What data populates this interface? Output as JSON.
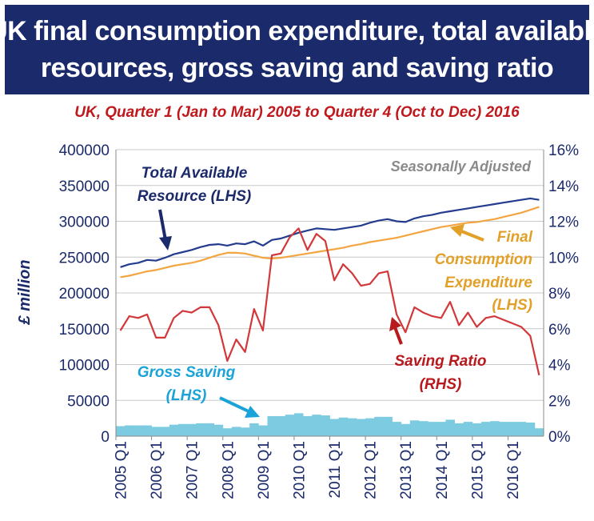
{
  "header": {
    "title_line1": "UK final consumption expenditure, total available",
    "title_line2": "resources, gross saving and saving ratio",
    "subtitle": "UK, Quarter 1 (Jan to Mar) 2005 to Quarter 4 (Oct to Dec) 2016"
  },
  "chart_data": {
    "type": "line",
    "title": "UK final consumption expenditure, total available resources, gross saving and saving ratio",
    "subtitle": "UK, Quarter 1 (Jan to Mar) 2005 to Quarter 4 (Oct to Dec) 2016",
    "ylabel": "£ million",
    "ylim": [
      0,
      400000
    ],
    "y2lim": [
      0,
      16
    ],
    "y_ticks": [
      "0",
      "50000",
      "100000",
      "150000",
      "200000",
      "250000",
      "300000",
      "350000",
      "400000"
    ],
    "y2_ticks": [
      "0%",
      "2%",
      "4%",
      "6%",
      "8%",
      "10%",
      "12%",
      "14%",
      "16%"
    ],
    "x_tick_labels": [
      "2005 Q1",
      "2006 Q1",
      "2007 Q1",
      "2008 Q1",
      "2009 Q1",
      "2010 Q1",
      "2011 Q1",
      "2012 Q1",
      "2013 Q1",
      "2014 Q1",
      "2015 Q1",
      "2016 Q1"
    ],
    "grid": "horizontal",
    "categories": [
      "2005 Q1",
      "2005 Q2",
      "2005 Q3",
      "2005 Q4",
      "2006 Q1",
      "2006 Q2",
      "2006 Q3",
      "2006 Q4",
      "2007 Q1",
      "2007 Q2",
      "2007 Q3",
      "2007 Q4",
      "2008 Q1",
      "2008 Q2",
      "2008 Q3",
      "2008 Q4",
      "2009 Q1",
      "2009 Q2",
      "2009 Q3",
      "2009 Q4",
      "2010 Q1",
      "2010 Q2",
      "2010 Q3",
      "2010 Q4",
      "2011 Q1",
      "2011 Q2",
      "2011 Q3",
      "2011 Q4",
      "2012 Q1",
      "2012 Q2",
      "2012 Q3",
      "2012 Q4",
      "2013 Q1",
      "2013 Q2",
      "2013 Q3",
      "2013 Q4",
      "2014 Q1",
      "2014 Q2",
      "2014 Q3",
      "2014 Q4",
      "2015 Q1",
      "2015 Q2",
      "2015 Q3",
      "2015 Q4",
      "2016 Q1",
      "2016 Q2",
      "2016 Q3",
      "2016 Q4"
    ],
    "annotations": {
      "seasonal": "Seasonally Adjusted",
      "tar_line1": "Total Available",
      "tar_line2": "Resource (LHS)",
      "fce_line1": "Final",
      "fce_line2": "Consumption",
      "fce_line3": "Expenditure",
      "fce_line4": "(LHS)",
      "sr_line1": "Saving Ratio",
      "sr_line2": "(RHS)",
      "gs_line1": "Gross Saving",
      "gs_line2": "(LHS)"
    },
    "series": [
      {
        "name": "Total Available Resource (LHS)",
        "kind": "line",
        "axis": "left",
        "color": "#233c8e",
        "values": [
          236000,
          240000,
          242000,
          246000,
          245000,
          249000,
          254000,
          257000,
          260000,
          264000,
          267000,
          268000,
          266000,
          269000,
          268000,
          272000,
          266000,
          274000,
          276000,
          280000,
          284000,
          287000,
          290000,
          289000,
          288000,
          290000,
          292000,
          294000,
          298000,
          301000,
          303000,
          300000,
          299000,
          304000,
          307000,
          309000,
          312000,
          314000,
          316000,
          318000,
          320000,
          322000,
          324000,
          326000,
          328000,
          330000,
          332000,
          330000
        ]
      },
      {
        "name": "Final Consumption Expenditure (LHS)",
        "kind": "line",
        "axis": "left",
        "color": "#f2a541",
        "values": [
          222000,
          224000,
          227000,
          230000,
          232000,
          235000,
          238000,
          240000,
          242000,
          245000,
          249000,
          253000,
          256000,
          256000,
          255000,
          252000,
          249000,
          248000,
          249000,
          251000,
          253000,
          255000,
          257000,
          259000,
          261000,
          263000,
          266000,
          268000,
          271000,
          273000,
          275000,
          277000,
          280000,
          283000,
          286000,
          289000,
          292000,
          294000,
          296000,
          298000,
          299000,
          301000,
          303000,
          306000,
          309000,
          312000,
          316000,
          320000
        ]
      },
      {
        "name": "Saving Ratio (RHS)",
        "kind": "line",
        "axis": "right",
        "color": "#d2383a",
        "values": [
          5.9,
          6.7,
          6.6,
          6.8,
          5.5,
          5.5,
          6.6,
          7.0,
          6.9,
          7.2,
          7.2,
          6.2,
          4.2,
          5.4,
          4.7,
          7.1,
          5.9,
          10.1,
          10.2,
          11.1,
          11.6,
          10.4,
          11.3,
          10.9,
          8.7,
          9.6,
          9.1,
          8.4,
          8.5,
          9.1,
          9.2,
          6.8,
          5.8,
          7.2,
          6.9,
          6.7,
          6.6,
          7.5,
          6.2,
          6.9,
          6.1,
          6.6,
          6.7,
          6.5,
          6.3,
          6.1,
          5.6,
          3.4
        ]
      },
      {
        "name": "Gross Saving (LHS)",
        "kind": "bar",
        "axis": "left",
        "color": "#7ccbe0",
        "values": [
          14000,
          15000,
          15000,
          15000,
          13000,
          13000,
          16000,
          17000,
          17000,
          18000,
          18000,
          16000,
          11000,
          13000,
          12000,
          18000,
          15000,
          28000,
          28000,
          30000,
          32000,
          28000,
          30000,
          29000,
          24000,
          26000,
          25000,
          24000,
          25000,
          27000,
          27000,
          20000,
          17000,
          22000,
          21000,
          20000,
          20000,
          23000,
          18000,
          20000,
          18000,
          20000,
          21000,
          20000,
          20000,
          20000,
          19000,
          11000
        ]
      }
    ]
  }
}
